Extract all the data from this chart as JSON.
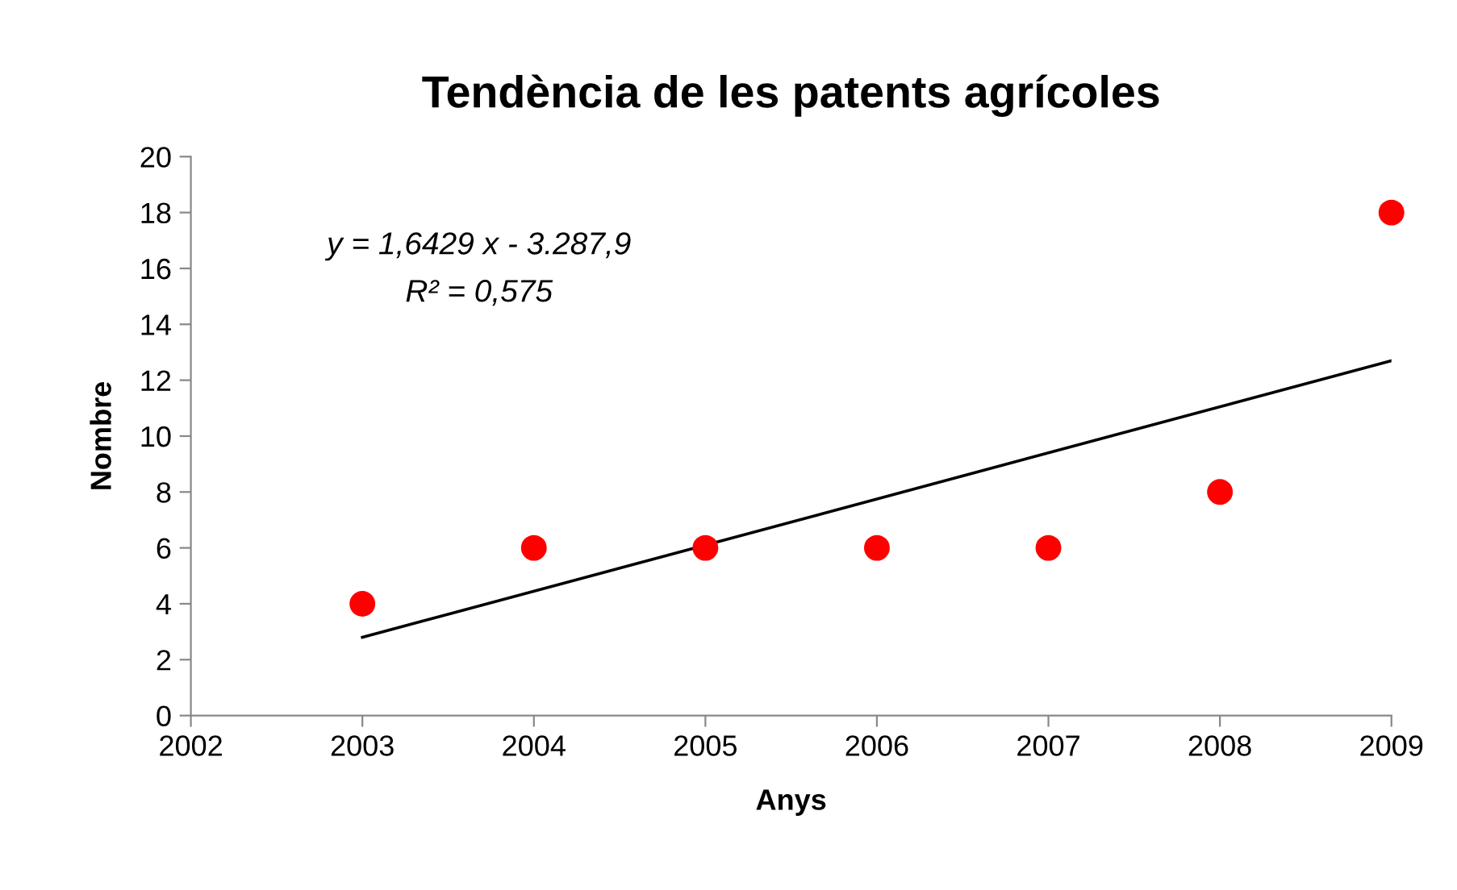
{
  "chart_data": {
    "type": "scatter",
    "title": "Tendència de les patents agrícoles",
    "xlabel": "Anys",
    "ylabel": "Nombre",
    "series": [
      {
        "color": "#ff0000",
        "marker": "circle",
        "x": [
          2003,
          2004,
          2005,
          2006,
          2007,
          2008,
          2009
        ],
        "values": [
          4,
          6,
          6,
          6,
          6,
          8,
          18
        ]
      },
      {
        "type": "line",
        "color": "#000000",
        "marker": "none",
        "line_style": "solid",
        "x": [
          2003,
          2009
        ],
        "values": [
          2.8,
          12.7
        ]
      }
    ],
    "annotations": [
      "y = 1,6429 x - 3.287,9",
      "R² = 0,575"
    ],
    "xlim": [
      2002,
      2009
    ],
    "xticks": [
      2002,
      2003,
      2004,
      2005,
      2006,
      2007,
      2008,
      2009
    ],
    "ylim": [
      0,
      20
    ],
    "yticks": [
      0,
      2,
      4,
      6,
      8,
      10,
      12,
      14,
      16,
      18,
      20
    ],
    "grid": false,
    "legend": false
  }
}
